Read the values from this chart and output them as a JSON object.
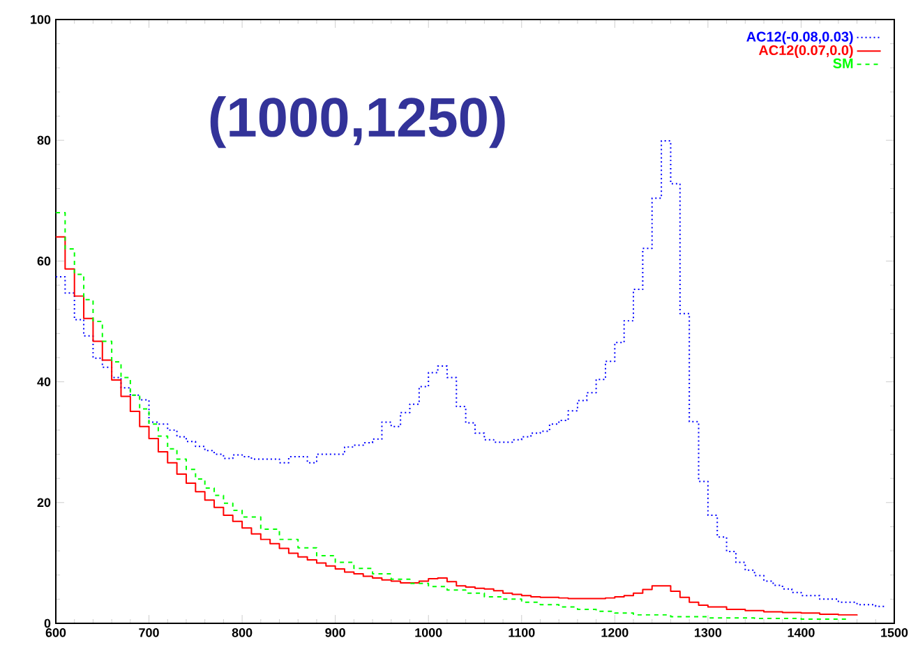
{
  "chart_data": {
    "type": "step",
    "title": "(1000,1250)",
    "xlim": [
      600,
      1500
    ],
    "ylim": [
      0,
      100
    ],
    "xticks": [
      600,
      700,
      800,
      900,
      1000,
      1100,
      1200,
      1300,
      1400,
      1500
    ],
    "yticks": [
      0,
      20,
      40,
      60,
      80,
      100
    ],
    "grid": false,
    "legend": "top right",
    "marker": "none",
    "series": [
      {
        "name": "AC12(-0.08,0.03)",
        "color": "#0000ff",
        "line_style": "dotted",
        "x": [
          600,
          610,
          620,
          630,
          640,
          650,
          660,
          670,
          680,
          690,
          700,
          710,
          720,
          730,
          740,
          750,
          760,
          770,
          780,
          790,
          800,
          810,
          840,
          850,
          870,
          880,
          910,
          920,
          930,
          940,
          950,
          960,
          970,
          980,
          990,
          1000,
          1010,
          1020,
          1030,
          1040,
          1050,
          1060,
          1070,
          1090,
          1100,
          1110,
          1120,
          1130,
          1140,
          1150,
          1160,
          1170,
          1180,
          1190,
          1200,
          1210,
          1220,
          1230,
          1240,
          1250,
          1260,
          1270,
          1280,
          1290,
          1300,
          1310,
          1320,
          1330,
          1340,
          1350,
          1360,
          1370,
          1380,
          1390,
          1400,
          1420,
          1440,
          1460,
          1480,
          1490
        ],
        "values": [
          57.4,
          54.7,
          50.3,
          47.6,
          43.9,
          42.4,
          40.7,
          39,
          37.8,
          37,
          33.3,
          33,
          32,
          30.9,
          30.1,
          29.3,
          28.6,
          28,
          27.3,
          27.9,
          27.6,
          27.2,
          26.6,
          27.6,
          26.6,
          28,
          29.2,
          29.5,
          29.9,
          30.5,
          33.3,
          32.6,
          34.9,
          36.3,
          39.2,
          41.5,
          42.6,
          40.7,
          35.9,
          33.2,
          31.5,
          30.4,
          30,
          30.4,
          30.9,
          31.5,
          31.8,
          33,
          33.6,
          35.2,
          36.9,
          38.2,
          40.4,
          43.4,
          46.5,
          50.1,
          55.3,
          62.1,
          70.4,
          79.9,
          72.8,
          51.3,
          33.4,
          23.5,
          17.9,
          14.3,
          11.9,
          10.1,
          8.8,
          7.9,
          7,
          6.3,
          5.7,
          5.1,
          4.6,
          4,
          3.5,
          3.1,
          2.8,
          2.5
        ]
      },
      {
        "name": "AC12(0.07,0.0)",
        "color": "#ff0000",
        "line_style": "solid",
        "x": [
          600,
          610,
          620,
          630,
          640,
          650,
          660,
          670,
          680,
          690,
          700,
          710,
          720,
          730,
          740,
          750,
          760,
          770,
          780,
          790,
          800,
          810,
          820,
          830,
          840,
          850,
          860,
          870,
          880,
          890,
          900,
          910,
          920,
          930,
          940,
          950,
          960,
          970,
          990,
          1000,
          1010,
          1020,
          1030,
          1040,
          1050,
          1060,
          1070,
          1080,
          1090,
          1100,
          1110,
          1120,
          1140,
          1150,
          1190,
          1200,
          1210,
          1220,
          1230,
          1240,
          1260,
          1270,
          1280,
          1290,
          1300,
          1320,
          1340,
          1360,
          1380,
          1400,
          1420,
          1440,
          1460
        ],
        "values": [
          64,
          58.7,
          54.2,
          50.5,
          46.7,
          43.6,
          40.3,
          37.6,
          35.1,
          32.6,
          30.6,
          28.4,
          26.6,
          24.7,
          23.2,
          21.8,
          20.4,
          19.2,
          17.9,
          16.9,
          15.8,
          14.8,
          13.9,
          13.2,
          12.4,
          11.6,
          11,
          10.5,
          10,
          9.5,
          9,
          8.5,
          8.2,
          7.8,
          7.5,
          7.2,
          7,
          6.7,
          7,
          7.4,
          7.5,
          6.9,
          6.2,
          6,
          5.8,
          5.7,
          5.4,
          5,
          4.8,
          4.6,
          4.4,
          4.3,
          4.2,
          4.1,
          4.2,
          4.4,
          4.6,
          5,
          5.6,
          6.2,
          5.3,
          4.3,
          3.5,
          3,
          2.7,
          2.3,
          2.1,
          1.9,
          1.8,
          1.7,
          1.5,
          1.4,
          1.3
        ]
      },
      {
        "name": "SM",
        "color": "#00ff00",
        "line_style": "dashed",
        "x": [
          600,
          610,
          620,
          630,
          640,
          650,
          660,
          670,
          680,
          690,
          700,
          710,
          720,
          730,
          740,
          750,
          760,
          770,
          780,
          790,
          800,
          820,
          840,
          860,
          880,
          900,
          920,
          940,
          960,
          980,
          1000,
          1020,
          1040,
          1060,
          1080,
          1100,
          1120,
          1140,
          1160,
          1180,
          1200,
          1220,
          1260,
          1300,
          1350,
          1400,
          1450
        ],
        "values": [
          68,
          62,
          57.8,
          53.6,
          50,
          46.7,
          43.3,
          40.7,
          37.8,
          35.5,
          33,
          31,
          28.9,
          27.2,
          25.5,
          23.9,
          22.4,
          21.2,
          19.9,
          18.7,
          17.6,
          15.6,
          13.9,
          12.5,
          11.2,
          10.1,
          9.1,
          8.2,
          7.3,
          6.6,
          6.1,
          5.5,
          5,
          4.4,
          4,
          3.5,
          3.1,
          2.7,
          2.3,
          2,
          1.7,
          1.4,
          1.1,
          0.9,
          0.8,
          0.7,
          0.6
        ]
      }
    ]
  }
}
